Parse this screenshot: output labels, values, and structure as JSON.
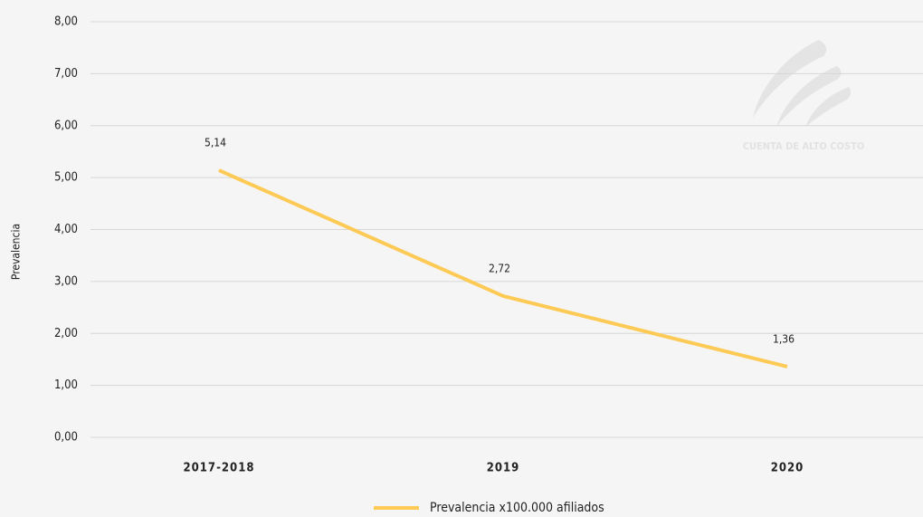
{
  "chart_data": {
    "type": "line",
    "y_label": "Prevalencia",
    "watermark": "CUENTA DE ALTO COSTO",
    "categories": [
      "2017-2018",
      "2019",
      "2020"
    ],
    "series": [
      {
        "name": "Prevalencia x100.000 afiliados",
        "color": "#fdca55",
        "values": [
          5.14,
          2.72,
          1.36
        ],
        "value_labels": [
          "5,14",
          "2,72",
          "1,36"
        ]
      }
    ],
    "ylim": [
      0,
      8
    ],
    "yticks": [
      {
        "value": 0,
        "label": "0,00"
      },
      {
        "value": 1,
        "label": "1,00"
      },
      {
        "value": 2,
        "label": "2,00"
      },
      {
        "value": 3,
        "label": "3,00"
      },
      {
        "value": 4,
        "label": "4,00"
      },
      {
        "value": 5,
        "label": "5,00"
      },
      {
        "value": 6,
        "label": "6,00"
      },
      {
        "value": 7,
        "label": "7,00"
      },
      {
        "value": 8,
        "label": "8,00"
      }
    ],
    "grid": true,
    "legend": "bottom"
  }
}
